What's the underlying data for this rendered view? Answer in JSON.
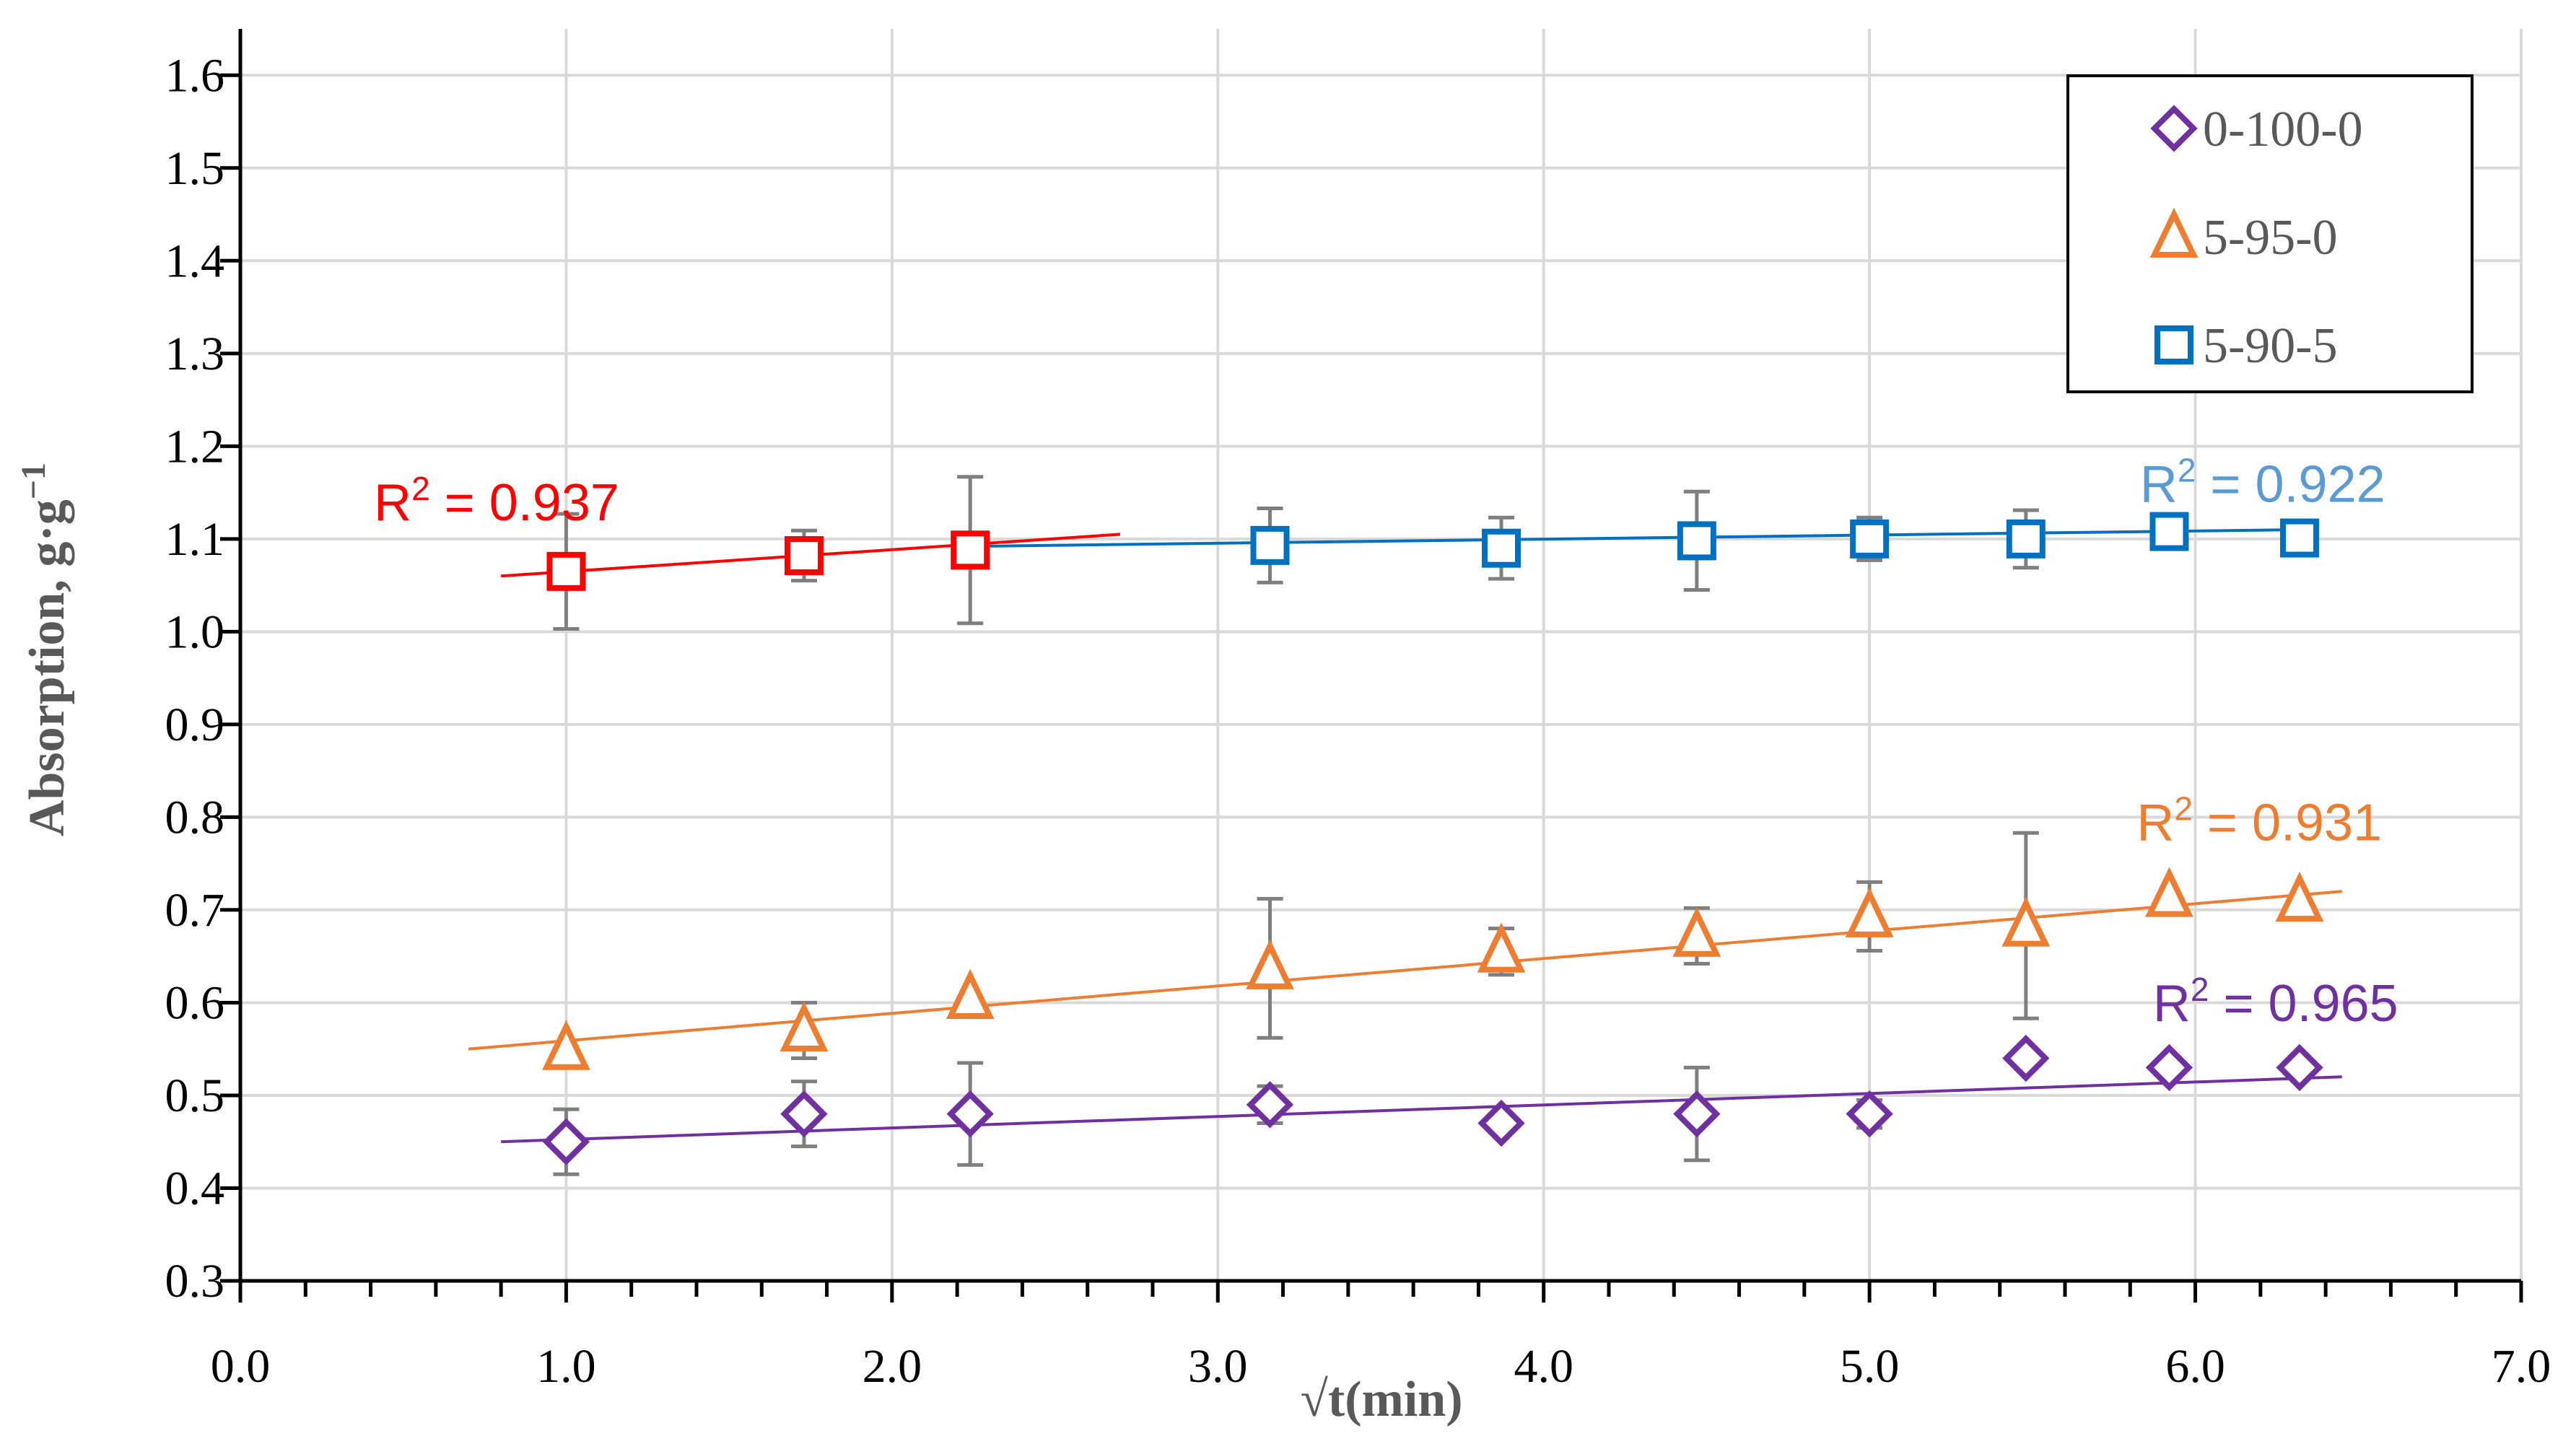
{
  "chart_data": {
    "type": "scatter",
    "xlabel": "√t(min)",
    "ylabel": "Absorption, g·g",
    "ylabel_superscript": "−1",
    "xlim": [
      0.0,
      7.0
    ],
    "ylim": [
      0.3,
      1.65
    ],
    "x_major_ticks": [
      0.0,
      1.0,
      2.0,
      3.0,
      4.0,
      5.0,
      6.0,
      7.0
    ],
    "x_tick_labels": [
      "0.0",
      "1.0",
      "2.0",
      "3.0",
      "4.0",
      "5.0",
      "6.0",
      "7.0"
    ],
    "y_ticks": [
      0.3,
      0.4,
      0.5,
      0.6,
      0.7,
      0.8,
      0.9,
      1.0,
      1.1,
      1.2,
      1.3,
      1.4,
      1.5,
      1.6
    ],
    "y_tick_labels": [
      "0.3",
      "0.4",
      "0.5",
      "0.6",
      "0.7",
      "0.8",
      "0.9",
      "1.0",
      "1.1",
      "1.2",
      "1.3",
      "1.4",
      "1.5",
      "1.6"
    ],
    "grid": true,
    "legend_position": "top-right",
    "series": [
      {
        "name": "0-100-0",
        "marker": "diamond",
        "color": "#7030A0",
        "points": [
          {
            "x": 1.0,
            "y": 0.45,
            "err": 0.035
          },
          {
            "x": 1.73,
            "y": 0.48,
            "err": 0.035
          },
          {
            "x": 2.24,
            "y": 0.48,
            "err": 0.055
          },
          {
            "x": 3.16,
            "y": 0.49,
            "err": 0.02
          },
          {
            "x": 3.87,
            "y": 0.47,
            "err": 0.0
          },
          {
            "x": 4.47,
            "y": 0.48,
            "err": 0.05
          },
          {
            "x": 5.0,
            "y": 0.48,
            "err": 0.015
          },
          {
            "x": 5.48,
            "y": 0.54,
            "err": 0.0
          },
          {
            "x": 5.92,
            "y": 0.53,
            "err": 0.0
          },
          {
            "x": 6.32,
            "y": 0.53,
            "err": 0.0
          }
        ],
        "trendline": {
          "x_start": 0.8,
          "y_start": 0.45,
          "x_end": 6.45,
          "y_end": 0.52
        },
        "r2_label": "0.965",
        "r2_label_x": 5.87,
        "r2_label_y": 0.58,
        "r2_color": "#7030A0"
      },
      {
        "name": "5-95-0",
        "marker": "triangle",
        "color": "#ED7D31",
        "points": [
          {
            "x": 1.0,
            "y": 0.55,
            "err": 0.0
          },
          {
            "x": 1.73,
            "y": 0.57,
            "err": 0.03
          },
          {
            "x": 2.24,
            "y": 0.605,
            "err": 0.0
          },
          {
            "x": 3.16,
            "y": 0.637,
            "err": 0.075
          },
          {
            "x": 3.87,
            "y": 0.655,
            "err": 0.025
          },
          {
            "x": 4.47,
            "y": 0.672,
            "err": 0.03
          },
          {
            "x": 5.0,
            "y": 0.693,
            "err": 0.037
          },
          {
            "x": 5.48,
            "y": 0.683,
            "err": 0.1
          },
          {
            "x": 5.92,
            "y": 0.715,
            "err": 0.0
          },
          {
            "x": 6.32,
            "y": 0.71,
            "err": 0.0
          }
        ],
        "trendline": {
          "x_start": 0.7,
          "y_start": 0.55,
          "x_end": 6.45,
          "y_end": 0.72
        },
        "r2_label": "0.931",
        "r2_label_x": 5.82,
        "r2_label_y": 0.775,
        "r2_color": "#ED7D31"
      },
      {
        "name": "5-90-5",
        "marker": "square",
        "color": "#0070C0",
        "points": [
          {
            "x": 1.0,
            "y": 1.065,
            "err": 0.062,
            "color": "#FF0000"
          },
          {
            "x": 1.73,
            "y": 1.082,
            "err": 0.027,
            "color": "#FF0000"
          },
          {
            "x": 2.24,
            "y": 1.088,
            "err": 0.079,
            "color": "#FF0000"
          },
          {
            "x": 3.16,
            "y": 1.093,
            "err": 0.04
          },
          {
            "x": 3.87,
            "y": 1.09,
            "err": 0.033
          },
          {
            "x": 4.47,
            "y": 1.098,
            "err": 0.053
          },
          {
            "x": 5.0,
            "y": 1.1,
            "err": 0.023
          },
          {
            "x": 5.48,
            "y": 1.1,
            "err": 0.031
          },
          {
            "x": 5.92,
            "y": 1.108,
            "err": 0.0
          },
          {
            "x": 6.32,
            "y": 1.101,
            "err": 0.0
          }
        ],
        "trendlines": [
          {
            "x_start": 0.8,
            "y_start": 1.06,
            "x_end": 2.7,
            "y_end": 1.105,
            "color": "#FF0000"
          },
          {
            "x_start": 2.24,
            "y_start": 1.092,
            "x_end": 6.32,
            "y_end": 1.11,
            "color": "#0070C0"
          }
        ],
        "r2_labels": [
          {
            "text": "0.937",
            "x": 0.41,
            "y": 1.12,
            "color": "#FF0000"
          },
          {
            "text": "0.922",
            "x": 5.83,
            "y": 1.14,
            "color": "#5B9BD5"
          }
        ]
      }
    ],
    "error_bar_color": "#7F7F7F",
    "r2_prefix": "R",
    "r2_exponent": "2",
    "r2_equals": " = "
  }
}
